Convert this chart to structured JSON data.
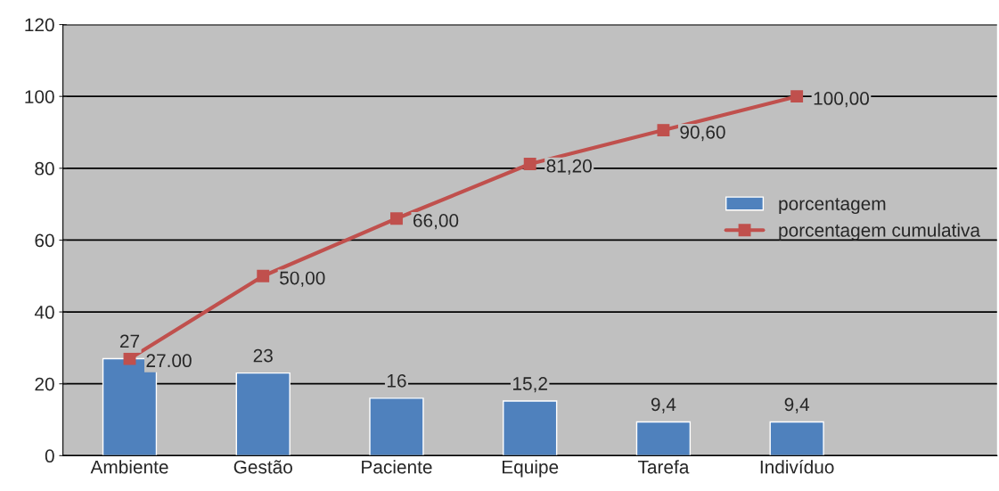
{
  "chart_data": {
    "type": "bar",
    "categories": [
      "Ambiente",
      "Gestão",
      "Paciente",
      "Equipe",
      "Tarefa",
      "Indivíduo",
      null
    ],
    "series": [
      {
        "name": "porcentagem",
        "color": "#4f81bd",
        "values": [
          27,
          23,
          16,
          15.2,
          9.4,
          9.4,
          null
        ],
        "value_labels": [
          "27",
          "23",
          "16",
          "15,2",
          "9,4",
          "9,4",
          null
        ]
      },
      {
        "name": "porcentagem cumulativa",
        "type": "line",
        "color": "#c0504d",
        "marker": "square",
        "values": [
          27,
          50,
          66,
          81.2,
          90.6,
          100,
          null
        ],
        "value_labels": [
          "27.00",
          "50,00",
          "66,00",
          "81,20",
          "90,60",
          "100,00",
          null
        ]
      }
    ],
    "ylim": [
      0,
      120
    ],
    "yticks": [
      0,
      20,
      40,
      60,
      80,
      100,
      120
    ],
    "grid": "y",
    "legend": "right"
  }
}
